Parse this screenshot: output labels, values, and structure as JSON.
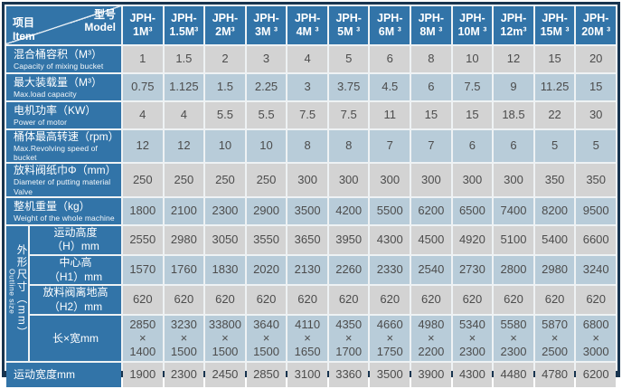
{
  "colors": {
    "frame_navy": "#18344f",
    "header_blue": "#3274a8",
    "cell_gray": "#d3d3d3",
    "cell_blue": "#b8ccd9",
    "text_dark": "#4c4c4c"
  },
  "corner": {
    "model_zh": "型号",
    "model_en": "Model",
    "item_zh": "项目",
    "item_en": "Item"
  },
  "columns": [
    "JPH-1M³",
    "JPH-1.5M³",
    "JPH-2M³",
    "JPH-3M ³",
    "JPH-4M ³",
    "JPH-5M ³",
    "JPH-6M ³",
    "JPH-8M ³",
    "JPH-10M ³",
    "JPH-12m³",
    "JPH-15M ³",
    "JPH-20M ³"
  ],
  "spec_rows": [
    {
      "label_zh": "混合桶容积（M³）",
      "label_en": "Capacity of mixing bucket",
      "values": [
        "1",
        "1.5",
        "2",
        "3",
        "4",
        "5",
        "6",
        "8",
        "10",
        "12",
        "15",
        "20"
      ]
    },
    {
      "label_zh": "最大装载量（M³）",
      "label_en": "Max.load capacity",
      "values": [
        "0.75",
        "1.125",
        "1.5",
        "2.25",
        "3",
        "3.75",
        "4.5",
        "6",
        "7.5",
        "9",
        "11.25",
        "15"
      ]
    },
    {
      "label_zh": "电机功率（KW）",
      "label_en": "Power of motor",
      "values": [
        "4",
        "4",
        "5.5",
        "5.5",
        "7.5",
        "7.5",
        "11",
        "15",
        "15",
        "18.5",
        "22",
        "30"
      ]
    },
    {
      "label_zh": "桶体最高转速（rpm）",
      "label_en": "Max.Revolving speed of bucket",
      "values": [
        "12",
        "12",
        "10",
        "10",
        "8",
        "8",
        "7",
        "7",
        "6",
        "6",
        "5",
        "5"
      ]
    },
    {
      "label_zh": "放料阀纸巾Φ（mm）",
      "label_en": "Diameter of putting material Valve",
      "values": [
        "250",
        "250",
        "250",
        "250",
        "300",
        "300",
        "300",
        "300",
        "300",
        "300",
        "350",
        "350"
      ]
    },
    {
      "label_zh": "整机重量（kg）",
      "label_en": "Weight of the whole machine",
      "values": [
        "1800",
        "2100",
        "2300",
        "2900",
        "3500",
        "4200",
        "5500",
        "6200",
        "6500",
        "7400",
        "8200",
        "9500"
      ]
    }
  ],
  "outline_group": {
    "label_zh": "外形尺寸（mm）",
    "label_en": "Outline size",
    "sub_rows": [
      {
        "label_zh": "运动高度\n（H）mm",
        "values": [
          "2550",
          "2980",
          "3050",
          "3550",
          "3650",
          "3950",
          "4300",
          "4500",
          "4920",
          "5100",
          "5400",
          "6600"
        ]
      },
      {
        "label_zh": "中心高\n（H1）mm",
        "values": [
          "1570",
          "1760",
          "1830",
          "2020",
          "2130",
          "2260",
          "2330",
          "2540",
          "2730",
          "2800",
          "2980",
          "3240"
        ]
      },
      {
        "label_zh": "放料阀离地高\n（H2）mm",
        "values": [
          "620",
          "620",
          "620",
          "620",
          "620",
          "620",
          "620",
          "620",
          "620",
          "620",
          "620",
          "620"
        ]
      },
      {
        "label_zh": "长×宽mm",
        "multiline": true,
        "values": [
          "2850×1400",
          "3230×1500",
          "33800×1500",
          "3640×1500",
          "4110×1650",
          "4350×1700",
          "4660×1750",
          "4980×2200",
          "5340×2300",
          "5580×2300",
          "5870×2500",
          "6800×3000"
        ]
      }
    ]
  },
  "bottom_row": {
    "label_zh": "运动宽度mm",
    "values": [
      "1900",
      "2300",
      "2450",
      "2850",
      "3100",
      "3360",
      "3500",
      "3900",
      "4300",
      "4480",
      "4780",
      "6200"
    ]
  }
}
